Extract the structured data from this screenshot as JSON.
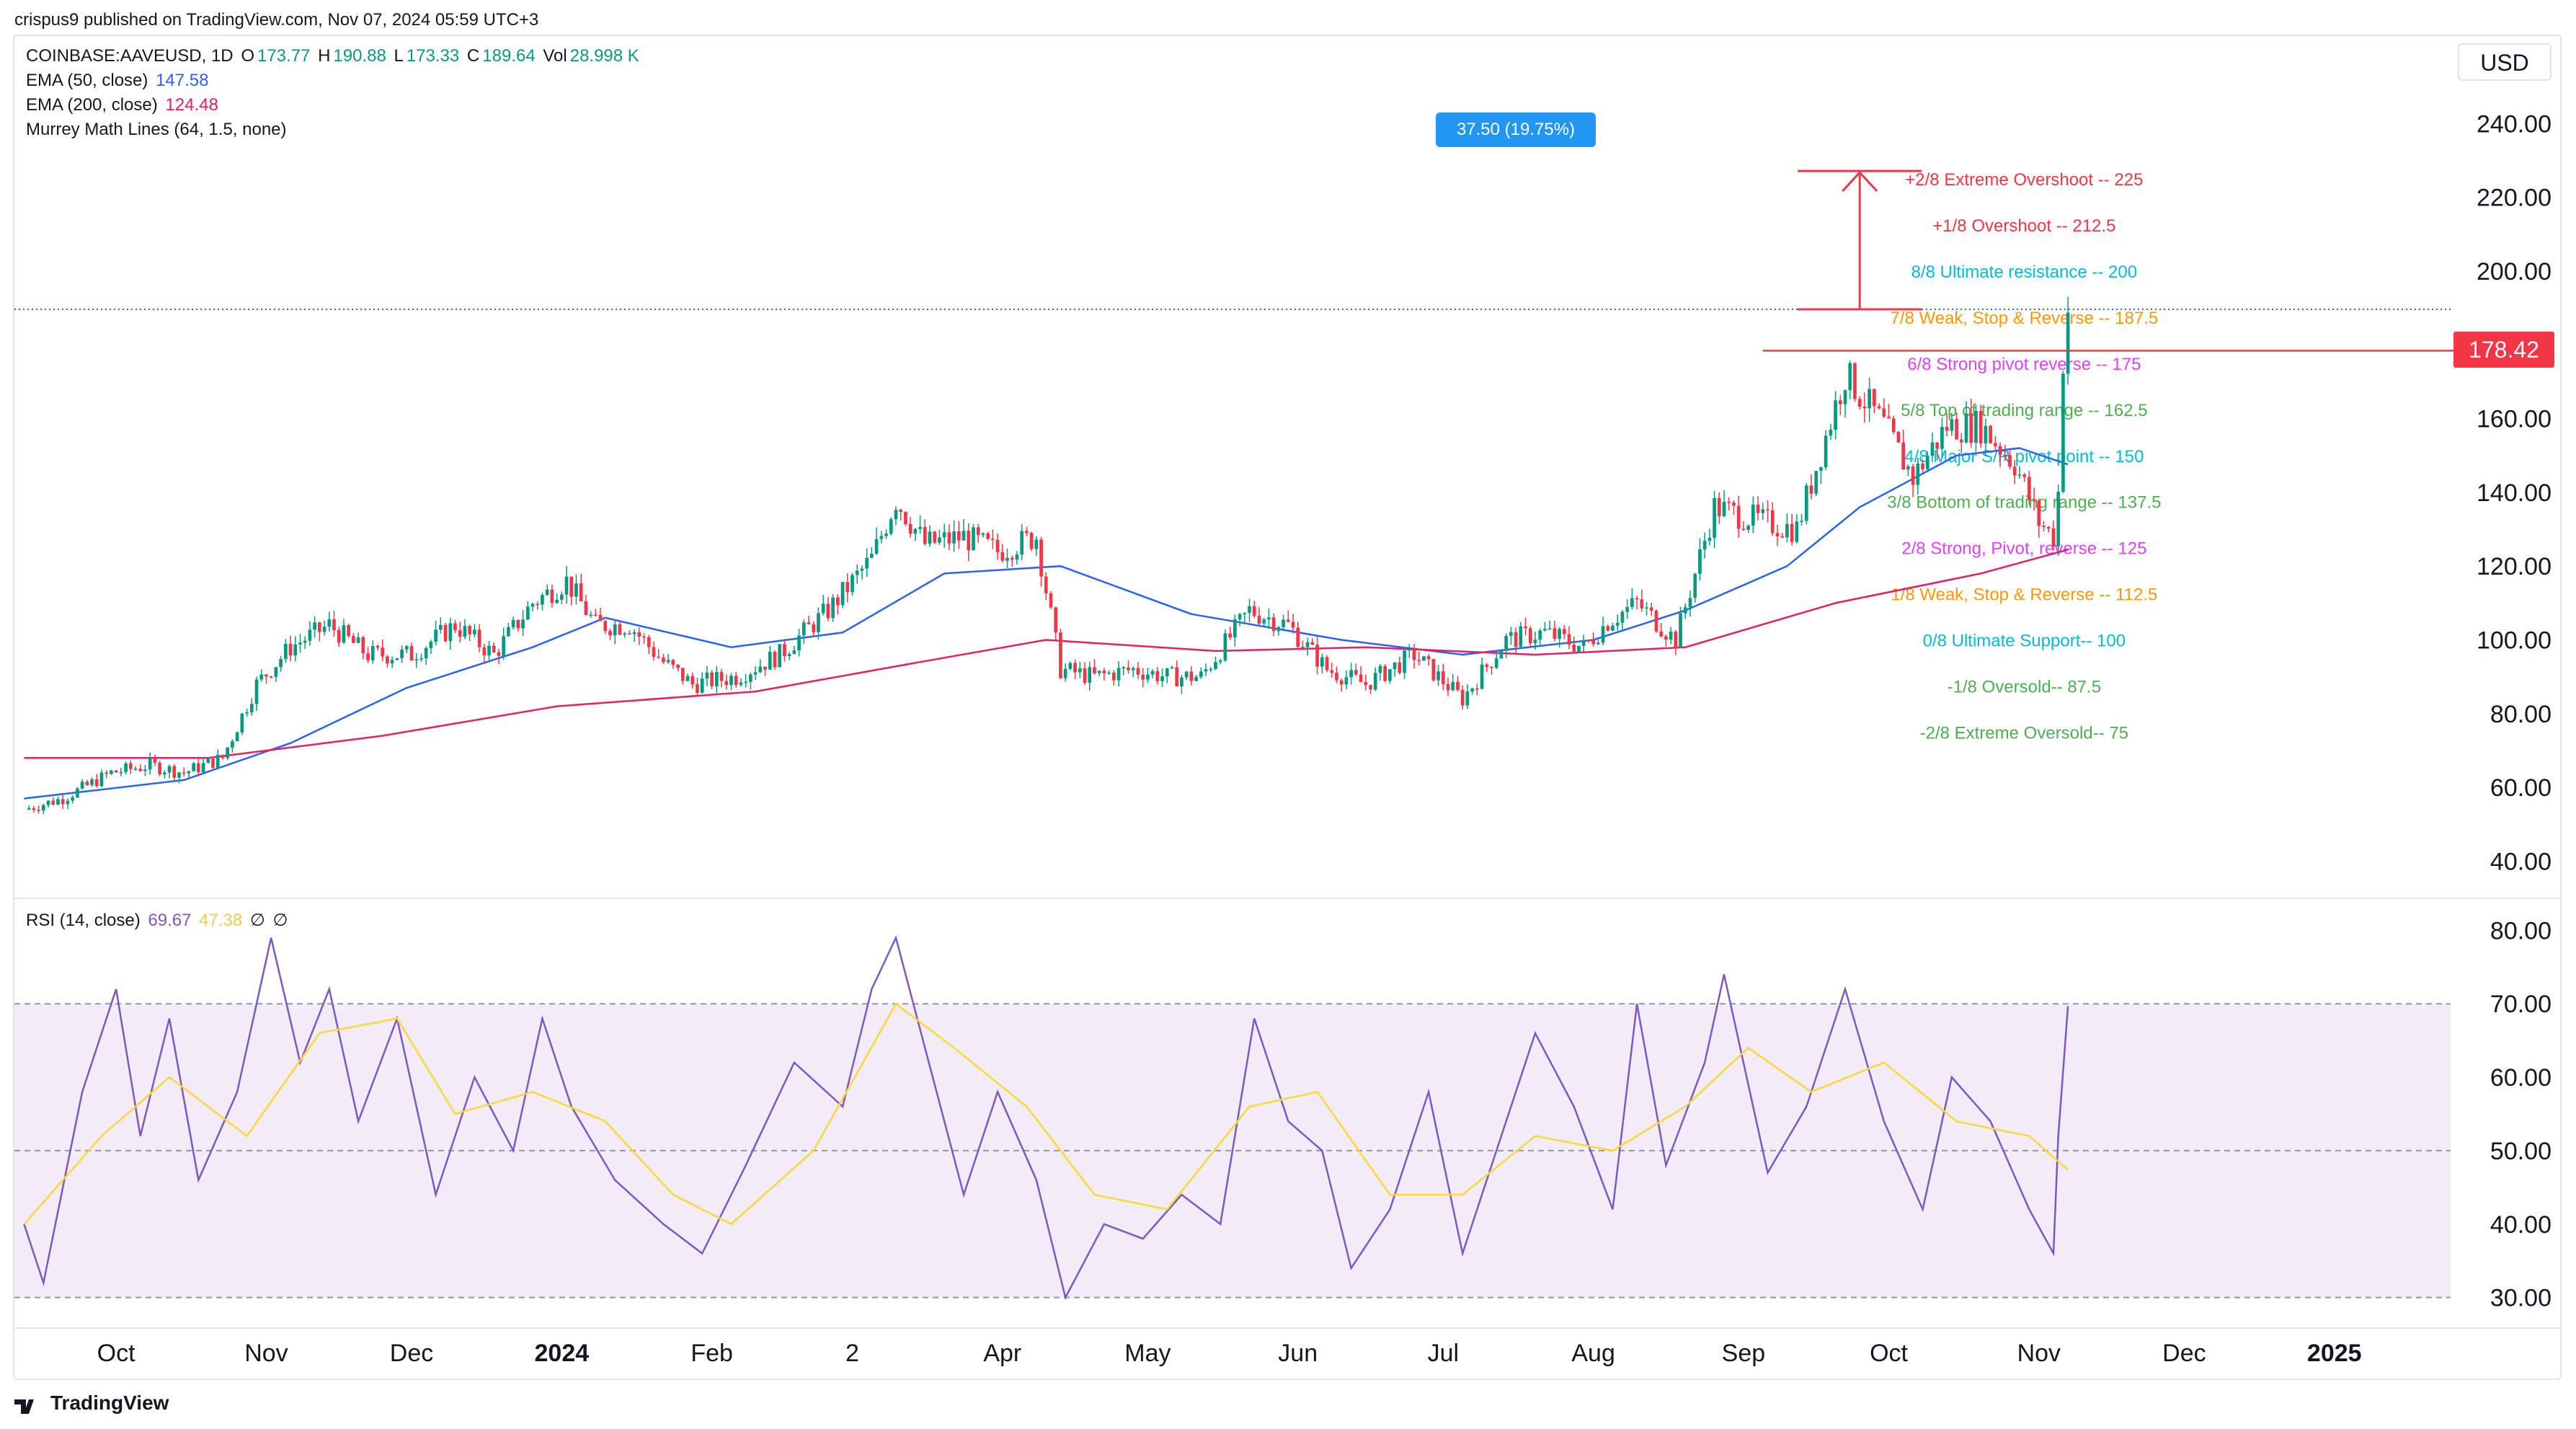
{
  "header": {
    "published": "crispus9 published on TradingView.com, Nov 07, 2024 05:59 UTC+3"
  },
  "currency_button": "USD",
  "legend": {
    "symbol": "COINBASE:AAVEUSD, 1D",
    "o_label": "O",
    "o": "173.77",
    "h_label": "H",
    "h": "190.88",
    "l_label": "L",
    "l": "173.33",
    "c_label": "C",
    "c": "189.64",
    "vol_label": "Vol",
    "vol": "28.998 K",
    "ema50_label": "EMA (50, close)",
    "ema50": "147.58",
    "ema200_label": "EMA (200, close)",
    "ema200": "124.48",
    "murrey_label": "Murrey Math Lines (64, 1.5, none)",
    "rsi_label": "RSI (14, close)",
    "rsi": "69.67",
    "rsi_ma": "47.38",
    "na1": "∅",
    "na2": "∅"
  },
  "price_tag": "178.42",
  "measure_tag": "37.50 (19.75%)",
  "footer": {
    "brand": "TradingView"
  },
  "colors": {
    "up": "#089981",
    "down": "#f23645",
    "ema50": "#2962ff",
    "ema200": "#e91e63",
    "rsi": "#7e57c2",
    "rsi_ma": "#fdd835",
    "rsi_band": "#ede7f6",
    "accent": "#2196f3"
  },
  "chart_data": [
    {
      "type": "candlestick",
      "title": "COINBASE:AAVEUSD, 1D",
      "ylabel": "USD",
      "ylim": [
        35,
        252
      ],
      "y_ticks": [
        40,
        60,
        80,
        100,
        120,
        140,
        160,
        180,
        200,
        220,
        240
      ],
      "y_tick_labels": [
        "40.00",
        "60.00",
        "80.00",
        "100.00",
        "120.00",
        "140.00",
        "160.00",
        "",
        "200.00",
        "220.00",
        "240.00"
      ],
      "x_labels": [
        "Oct",
        "Nov",
        "Dec",
        "2024",
        "Feb",
        "2",
        "Apr",
        "May",
        "Jun",
        "Jul",
        "Aug",
        "Sep",
        "Oct",
        "Nov",
        "Dec",
        "2025"
      ],
      "price_path": [
        [
          "2023-09-12",
          54
        ],
        [
          "2023-09-20",
          57
        ],
        [
          "2023-09-30",
          64
        ],
        [
          "2023-10-08",
          66
        ],
        [
          "2023-10-15",
          64
        ],
        [
          "2023-10-23",
          68
        ],
        [
          "2023-10-30",
          88
        ],
        [
          "2023-11-06",
          98
        ],
        [
          "2023-11-14",
          104
        ],
        [
          "2023-11-22",
          96
        ],
        [
          "2023-12-01",
          96
        ],
        [
          "2023-12-10",
          104
        ],
        [
          "2023-12-18",
          96
        ],
        [
          "2023-12-26",
          110
        ],
        [
          "2024-01-02",
          116
        ],
        [
          "2024-01-08",
          104
        ],
        [
          "2024-01-15",
          104
        ],
        [
          "2024-01-22",
          94
        ],
        [
          "2024-01-28",
          88
        ],
        [
          "2024-02-06",
          90
        ],
        [
          "2024-02-15",
          96
        ],
        [
          "2024-02-25",
          108
        ],
        [
          "2024-03-05",
          122
        ],
        [
          "2024-03-10",
          138
        ],
        [
          "2024-03-16",
          126
        ],
        [
          "2024-03-24",
          128
        ],
        [
          "2024-03-31",
          124
        ],
        [
          "2024-04-08",
          128
        ],
        [
          "2024-04-13",
          92
        ],
        [
          "2024-04-20",
          90
        ],
        [
          "2024-04-28",
          92
        ],
        [
          "2024-05-05",
          90
        ],
        [
          "2024-05-12",
          90
        ],
        [
          "2024-05-22",
          108
        ],
        [
          "2024-05-30",
          104
        ],
        [
          "2024-06-07",
          92
        ],
        [
          "2024-06-15",
          88
        ],
        [
          "2024-06-25",
          96
        ],
        [
          "2024-07-05",
          84
        ],
        [
          "2024-07-14",
          100
        ],
        [
          "2024-07-22",
          102
        ],
        [
          "2024-07-30",
          98
        ],
        [
          "2024-08-04",
          105
        ],
        [
          "2024-08-10",
          110
        ],
        [
          "2024-08-18",
          100
        ],
        [
          "2024-08-26",
          136
        ],
        [
          "2024-09-05",
          132
        ],
        [
          "2024-09-12",
          130
        ],
        [
          "2024-09-22",
          172
        ],
        [
          "2024-09-30",
          158
        ],
        [
          "2024-10-06",
          144
        ],
        [
          "2024-10-13",
          158
        ],
        [
          "2024-10-20",
          158
        ],
        [
          "2024-10-27",
          148
        ],
        [
          "2024-11-01",
          132
        ],
        [
          "2024-11-04",
          128
        ],
        [
          "2024-11-05",
          140
        ],
        [
          "2024-11-06",
          176
        ],
        [
          "2024-11-07",
          189.64
        ]
      ],
      "series": [
        {
          "name": "EMA (50, close)",
          "path": [
            [
              "2023-09-12",
              57
            ],
            [
              "2023-10-15",
              62
            ],
            [
              "2023-11-06",
              72
            ],
            [
              "2023-11-30",
              87
            ],
            [
              "2023-12-26",
              98
            ],
            [
              "2024-01-10",
              106
            ],
            [
              "2024-02-05",
              98
            ],
            [
              "2024-02-28",
              102
            ],
            [
              "2024-03-20",
              118
            ],
            [
              "2024-04-13",
              120
            ],
            [
              "2024-05-10",
              107
            ],
            [
              "2024-06-10",
              100
            ],
            [
              "2024-07-05",
              96
            ],
            [
              "2024-08-01",
              100
            ],
            [
              "2024-08-20",
              108
            ],
            [
              "2024-09-10",
              120
            ],
            [
              "2024-09-25",
              136
            ],
            [
              "2024-10-15",
              150
            ],
            [
              "2024-10-28",
              152
            ],
            [
              "2024-11-07",
              147.58
            ]
          ]
        },
        {
          "name": "EMA (200, close)",
          "path": [
            [
              "2023-09-12",
              68
            ],
            [
              "2023-10-20",
              68
            ],
            [
              "2023-11-25",
              74
            ],
            [
              "2023-12-31",
              82
            ],
            [
              "2024-02-10",
              86
            ],
            [
              "2024-03-15",
              94
            ],
            [
              "2024-04-10",
              100
            ],
            [
              "2024-05-15",
              97
            ],
            [
              "2024-06-15",
              98
            ],
            [
              "2024-07-20",
              96
            ],
            [
              "2024-08-20",
              98
            ],
            [
              "2024-09-20",
              110
            ],
            [
              "2024-10-20",
              118
            ],
            [
              "2024-11-07",
              124.48
            ]
          ]
        }
      ],
      "horizontal_levels": [
        {
          "label": "+2/8 Extreme Overshoot --  225",
          "value": 225,
          "color": "#f23645"
        },
        {
          "label": "+1/8 Overshoot --  212.5",
          "value": 212.5,
          "color": "#f23645"
        },
        {
          "label": "8/8 Ultimate resistance --  200",
          "value": 200,
          "color": "#00bcd4"
        },
        {
          "label": "7/8 Weak, Stop & Reverse --  187.5",
          "value": 187.5,
          "color": "#ff9800"
        },
        {
          "label": "6/8 Strong pivot reverse --  175",
          "value": 175,
          "color": "#e040fb"
        },
        {
          "label": "5/8 Top of trading range --  162.5",
          "value": 162.5,
          "color": "#4caf50"
        },
        {
          "label": "4/8 Major S/R pivot point --  150",
          "value": 150,
          "color": "#00bcd4"
        },
        {
          "label": "3/8 Bottom of trading range --  137.5",
          "value": 137.5,
          "color": "#4caf50"
        },
        {
          "label": "2/8 Strong, Pivot, reverse --  125",
          "value": 125,
          "color": "#e040fb"
        },
        {
          "label": "1/8 Weak, Stop & Reverse --  112.5",
          "value": 112.5,
          "color": "#ff9800"
        },
        {
          "label": "0/8 Ultimate Support--  100",
          "value": 100,
          "color": "#00bcd4"
        },
        {
          "label": "-1/8 Oversold--  87.5",
          "value": 87.5,
          "color": "#4caf50"
        },
        {
          "label": "-2/8 Extreme Oversold--  75",
          "value": 75,
          "color": "#4caf50"
        }
      ],
      "resistance_line": {
        "value": 178.42,
        "from": "2024-09-05",
        "to": "2024-11-07"
      },
      "measure": {
        "from_value": 189.64,
        "to_value": 227.14,
        "date": "2024-09-25",
        "label": "37.50 (19.75%)"
      }
    },
    {
      "type": "line",
      "title": "RSI (14, close)",
      "ylim": [
        28,
        82
      ],
      "y_ticks": [
        30,
        40,
        50,
        60,
        70,
        80
      ],
      "y_tick_labels": [
        "30.00",
        "40.00",
        "50.00",
        "60.00",
        "70.00",
        "80.00"
      ],
      "band": [
        30,
        70
      ],
      "series": [
        {
          "name": "RSI",
          "path": [
            [
              "2023-09-12",
              40
            ],
            [
              "2023-09-16",
              32
            ],
            [
              "2023-09-24",
              58
            ],
            [
              "2023-10-01",
              72
            ],
            [
              "2023-10-06",
              52
            ],
            [
              "2023-10-12",
              68
            ],
            [
              "2023-10-18",
              46
            ],
            [
              "2023-10-26",
              58
            ],
            [
              "2023-11-02",
              79
            ],
            [
              "2023-11-08",
              62
            ],
            [
              "2023-11-14",
              72
            ],
            [
              "2023-11-20",
              54
            ],
            [
              "2023-11-28",
              68
            ],
            [
              "2023-12-06",
              44
            ],
            [
              "2023-12-14",
              60
            ],
            [
              "2023-12-22",
              50
            ],
            [
              "2023-12-28",
              68
            ],
            [
              "2024-01-03",
              56
            ],
            [
              "2024-01-12",
              46
            ],
            [
              "2024-01-22",
              40
            ],
            [
              "2024-01-30",
              36
            ],
            [
              "2024-02-08",
              48
            ],
            [
              "2024-02-18",
              62
            ],
            [
              "2024-02-28",
              56
            ],
            [
              "2024-03-05",
              72
            ],
            [
              "2024-03-10",
              79
            ],
            [
              "2024-03-16",
              64
            ],
            [
              "2024-03-24",
              44
            ],
            [
              "2024-03-31",
              58
            ],
            [
              "2024-04-08",
              46
            ],
            [
              "2024-04-14",
              30
            ],
            [
              "2024-04-22",
              40
            ],
            [
              "2024-04-30",
              38
            ],
            [
              "2024-05-08",
              44
            ],
            [
              "2024-05-16",
              40
            ],
            [
              "2024-05-23",
              68
            ],
            [
              "2024-05-30",
              54
            ],
            [
              "2024-06-06",
              50
            ],
            [
              "2024-06-12",
              34
            ],
            [
              "2024-06-20",
              42
            ],
            [
              "2024-06-28",
              58
            ],
            [
              "2024-07-05",
              36
            ],
            [
              "2024-07-12",
              50
            ],
            [
              "2024-07-20",
              66
            ],
            [
              "2024-07-28",
              56
            ],
            [
              "2024-08-05",
              42
            ],
            [
              "2024-08-10",
              70
            ],
            [
              "2024-08-16",
              48
            ],
            [
              "2024-08-24",
              62
            ],
            [
              "2024-08-28",
              74
            ],
            [
              "2024-09-06",
              47
            ],
            [
              "2024-09-14",
              56
            ],
            [
              "2024-09-22",
              72
            ],
            [
              "2024-09-30",
              54
            ],
            [
              "2024-10-08",
              42
            ],
            [
              "2024-10-14",
              60
            ],
            [
              "2024-10-22",
              54
            ],
            [
              "2024-10-30",
              42
            ],
            [
              "2024-11-04",
              36
            ],
            [
              "2024-11-05",
              52
            ],
            [
              "2024-11-07",
              69.67
            ]
          ]
        },
        {
          "name": "RSI-based MA",
          "path": [
            [
              "2023-09-12",
              40
            ],
            [
              "2023-09-28",
              52
            ],
            [
              "2023-10-12",
              60
            ],
            [
              "2023-10-28",
              52
            ],
            [
              "2023-11-12",
              66
            ],
            [
              "2023-11-28",
              68
            ],
            [
              "2023-12-10",
              55
            ],
            [
              "2023-12-26",
              58
            ],
            [
              "2024-01-10",
              54
            ],
            [
              "2024-01-24",
              44
            ],
            [
              "2024-02-05",
              40
            ],
            [
              "2024-02-22",
              50
            ],
            [
              "2024-03-10",
              70
            ],
            [
              "2024-03-22",
              64
            ],
            [
              "2024-04-06",
              56
            ],
            [
              "2024-04-20",
              44
            ],
            [
              "2024-05-05",
              42
            ],
            [
              "2024-05-22",
              56
            ],
            [
              "2024-06-05",
              58
            ],
            [
              "2024-06-20",
              44
            ],
            [
              "2024-07-05",
              44
            ],
            [
              "2024-07-20",
              52
            ],
            [
              "2024-08-05",
              50
            ],
            [
              "2024-08-20",
              56
            ],
            [
              "2024-09-02",
              64
            ],
            [
              "2024-09-15",
              58
            ],
            [
              "2024-09-30",
              62
            ],
            [
              "2024-10-15",
              54
            ],
            [
              "2024-10-30",
              52
            ],
            [
              "2024-11-07",
              47.38
            ]
          ]
        }
      ]
    }
  ]
}
